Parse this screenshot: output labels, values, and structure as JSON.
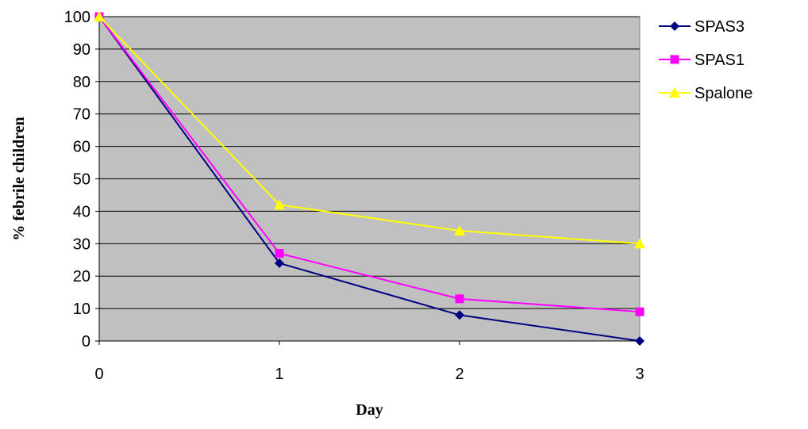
{
  "chart_data": {
    "type": "line",
    "title": "",
    "xlabel": "Day",
    "ylabel": "% febrile children",
    "x": [
      0,
      1,
      2,
      3
    ],
    "xlim": [
      0,
      3
    ],
    "ylim": [
      0,
      100
    ],
    "yticks": [
      0,
      10,
      20,
      30,
      40,
      50,
      60,
      70,
      80,
      90,
      100
    ],
    "xticks": [
      0,
      1,
      2,
      3
    ],
    "grid": "horizontal",
    "plot_background": "#c0c0c0",
    "legend_position": "right",
    "series": [
      {
        "name": "SPAS3",
        "values": [
          100,
          24,
          8,
          0
        ],
        "color": "#000080",
        "marker": "diamond"
      },
      {
        "name": "SPAS1",
        "values": [
          100,
          27,
          13,
          9
        ],
        "color": "#ff00ff",
        "marker": "square"
      },
      {
        "name": "Spalone",
        "values": [
          100,
          42,
          34,
          30
        ],
        "color": "#ffff00",
        "marker": "triangle"
      }
    ]
  }
}
